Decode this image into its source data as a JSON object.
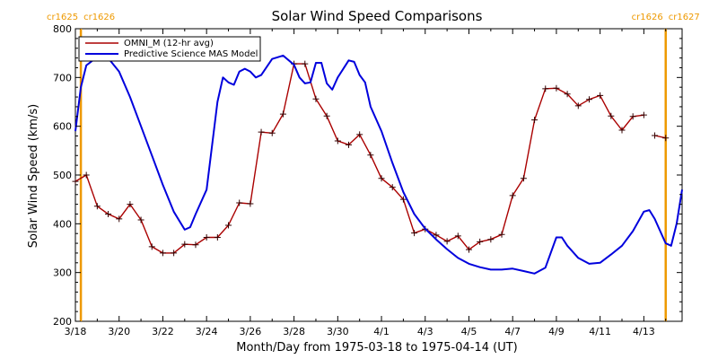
{
  "chart_data": {
    "type": "line",
    "title": "Solar Wind Speed Comparisons",
    "xlabel": "Month/Day from 1975-03-18 to 1975-04-14 (UT)",
    "ylabel": "Solar Wind Speed (km/s)",
    "xlim": [
      "1975-03-18",
      "1975-04-14"
    ],
    "ylim": [
      200,
      800
    ],
    "x_ticks": [
      "3/18",
      "3/20",
      "3/22",
      "3/24",
      "3/26",
      "3/28",
      "3/30",
      "4/1",
      "4/3",
      "4/5",
      "4/7",
      "4/9",
      "4/11",
      "4/13"
    ],
    "y_ticks": [
      200,
      300,
      400,
      500,
      600,
      700,
      800
    ],
    "legend_position": "top-left",
    "colors": {
      "omni": "#aa0000",
      "model": "#0000dd",
      "carrington": "#ee9900"
    },
    "carrington_markers": [
      {
        "date": "1975-03-18T06:00",
        "labels": [
          "cr1625",
          "cr1626"
        ]
      },
      {
        "date": "1975-04-14T00:00",
        "labels": [
          "cr1626",
          "cr1627"
        ]
      }
    ],
    "series": [
      {
        "name": "OMNI_M (12-hr avg)",
        "marker": "+",
        "segments": [
          [
            [
              "1975-03-18T00:00",
              487
            ],
            [
              "1975-03-18T12:00",
              500
            ],
            [
              "1975-03-19T00:00",
              436
            ],
            [
              "1975-03-19T12:00",
              420
            ],
            [
              "1975-03-20T00:00",
              410
            ],
            [
              "1975-03-20T12:00",
              440
            ],
            [
              "1975-03-21T00:00",
              408
            ],
            [
              "1975-03-21T12:00",
              353
            ],
            [
              "1975-03-22T00:00",
              340
            ],
            [
              "1975-03-22T12:00",
              340
            ],
            [
              "1975-03-23T00:00",
              358
            ],
            [
              "1975-03-23T12:00",
              357
            ],
            [
              "1975-03-24T00:00",
              372
            ],
            [
              "1975-03-24T12:00",
              372
            ],
            [
              "1975-03-25T00:00",
              397
            ],
            [
              "1975-03-25T12:00",
              443
            ],
            [
              "1975-03-26T00:00",
              441
            ],
            [
              "1975-03-26T12:00",
              588
            ],
            [
              "1975-03-27T00:00",
              586
            ],
            [
              "1975-03-27T12:00",
              625
            ],
            [
              "1975-03-28T00:00",
              728
            ],
            [
              "1975-03-28T12:00",
              728
            ],
            [
              "1975-03-29T00:00",
              656
            ],
            [
              "1975-03-29T12:00",
              621
            ],
            [
              "1975-03-30T00:00",
              570
            ],
            [
              "1975-03-30T12:00",
              562
            ],
            [
              "1975-03-31T00:00",
              583
            ],
            [
              "1975-03-31T12:00",
              541
            ],
            [
              "1975-04-01T00:00",
              493
            ],
            [
              "1975-04-01T12:00",
              475
            ],
            [
              "1975-04-02T00:00",
              450
            ],
            [
              "1975-04-02T12:00",
              381
            ],
            [
              "1975-04-03T00:00",
              389
            ],
            [
              "1975-04-03T12:00",
              377
            ],
            [
              "1975-04-04T00:00",
              364
            ],
            [
              "1975-04-04T12:00",
              375
            ],
            [
              "1975-04-05T00:00",
              347
            ],
            [
              "1975-04-05T12:00",
              363
            ],
            [
              "1975-04-06T00:00",
              368
            ],
            [
              "1975-04-06T12:00",
              378
            ],
            [
              "1975-04-07T00:00",
              458
            ],
            [
              "1975-04-07T12:00",
              493
            ],
            [
              "1975-04-08T00:00",
              613
            ],
            [
              "1975-04-08T12:00",
              677
            ],
            [
              "1975-04-09T00:00",
              678
            ],
            [
              "1975-04-09T12:00",
              666
            ],
            [
              "1975-04-10T00:00",
              642
            ],
            [
              "1975-04-10T12:00",
              655
            ],
            [
              "1975-04-11T00:00",
              663
            ],
            [
              "1975-04-11T12:00",
              621
            ],
            [
              "1975-04-12T00:00",
              592
            ],
            [
              "1975-04-12T12:00",
              620
            ],
            [
              "1975-04-13T00:00",
              623
            ]
          ],
          [
            [
              "1975-04-13T12:00",
              581
            ],
            [
              "1975-04-14T00:00",
              576
            ]
          ]
        ]
      },
      {
        "name": "Predictive Science MAS Model",
        "marker": "none",
        "segments": [
          [
            [
              "1975-03-18T00:00",
              590
            ],
            [
              "1975-03-18T06:00",
              680
            ],
            [
              "1975-03-18T12:00",
              725
            ],
            [
              "1975-03-19T00:00",
              742
            ],
            [
              "1975-03-19T12:00",
              740
            ],
            [
              "1975-03-20T00:00",
              712
            ],
            [
              "1975-03-20T12:00",
              660
            ],
            [
              "1975-03-21T00:00",
              600
            ],
            [
              "1975-03-21T12:00",
              540
            ],
            [
              "1975-03-22T00:00",
              480
            ],
            [
              "1975-03-22T12:00",
              425
            ],
            [
              "1975-03-23T00:00",
              388
            ],
            [
              "1975-03-23T06:00",
              393
            ],
            [
              "1975-03-23T12:00",
              420
            ],
            [
              "1975-03-24T00:00",
              470
            ],
            [
              "1975-03-24T12:00",
              650
            ],
            [
              "1975-03-24T18:00",
              700
            ],
            [
              "1975-03-25T00:00",
              690
            ],
            [
              "1975-03-25T06:00",
              685
            ],
            [
              "1975-03-25T12:00",
              712
            ],
            [
              "1975-03-25T18:00",
              718
            ],
            [
              "1975-03-26T00:00",
              712
            ],
            [
              "1975-03-26T06:00",
              700
            ],
            [
              "1975-03-26T12:00",
              705
            ],
            [
              "1975-03-27T00:00",
              738
            ],
            [
              "1975-03-27T12:00",
              745
            ],
            [
              "1975-03-28T00:00",
              726
            ],
            [
              "1975-03-28T06:00",
              700
            ],
            [
              "1975-03-28T12:00",
              688
            ],
            [
              "1975-03-28T18:00",
              690
            ],
            [
              "1975-03-29T00:00",
              730
            ],
            [
              "1975-03-29T06:00",
              730
            ],
            [
              "1975-03-29T12:00",
              688
            ],
            [
              "1975-03-29T18:00",
              675
            ],
            [
              "1975-03-30T00:00",
              700
            ],
            [
              "1975-03-30T12:00",
              735
            ],
            [
              "1975-03-30T18:00",
              732
            ],
            [
              "1975-03-31T00:00",
              705
            ],
            [
              "1975-03-31T06:00",
              690
            ],
            [
              "1975-03-31T12:00",
              640
            ],
            [
              "1975-04-01T00:00",
              590
            ],
            [
              "1975-04-01T12:00",
              525
            ],
            [
              "1975-04-02T00:00",
              465
            ],
            [
              "1975-04-02T12:00",
              420
            ],
            [
              "1975-04-03T00:00",
              390
            ],
            [
              "1975-04-03T12:00",
              368
            ],
            [
              "1975-04-04T00:00",
              348
            ],
            [
              "1975-04-04T12:00",
              330
            ],
            [
              "1975-04-05T00:00",
              318
            ],
            [
              "1975-04-05T12:00",
              311
            ],
            [
              "1975-04-06T00:00",
              306
            ],
            [
              "1975-04-06T12:00",
              306
            ],
            [
              "1975-04-07T00:00",
              308
            ],
            [
              "1975-04-07T12:00",
              303
            ],
            [
              "1975-04-08T00:00",
              298
            ],
            [
              "1975-04-08T12:00",
              310
            ],
            [
              "1975-04-09T00:00",
              372
            ],
            [
              "1975-04-09T06:00",
              372
            ],
            [
              "1975-04-09T12:00",
              355
            ],
            [
              "1975-04-10T00:00",
              330
            ],
            [
              "1975-04-10T12:00",
              318
            ],
            [
              "1975-04-11T00:00",
              320
            ],
            [
              "1975-04-11T12:00",
              337
            ],
            [
              "1975-04-12T00:00",
              355
            ],
            [
              "1975-04-12T12:00",
              385
            ],
            [
              "1975-04-13T00:00",
              425
            ],
            [
              "1975-04-13T06:00",
              428
            ],
            [
              "1975-04-13T12:00",
              410
            ],
            [
              "1975-04-14T00:00",
              360
            ],
            [
              "1975-04-14T06:00",
              355
            ],
            [
              "1975-04-14T12:00",
              400
            ],
            [
              "1975-04-14T18:00",
              470
            ]
          ]
        ]
      }
    ]
  }
}
